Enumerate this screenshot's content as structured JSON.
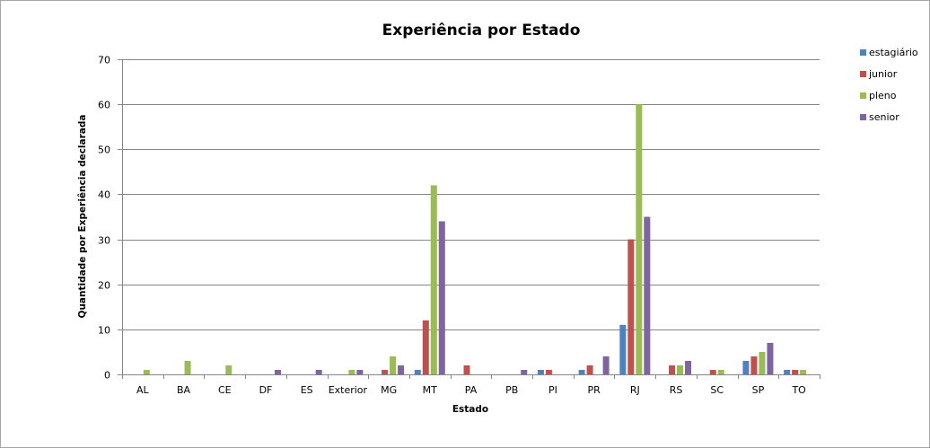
{
  "chart_data": {
    "type": "bar",
    "title": "Experiência por Estado",
    "xlabel": "Estado",
    "ylabel": "Quantidade por Experiência declarada",
    "ylim": [
      0,
      70
    ],
    "yticks": [
      "0",
      "10",
      "20",
      "30",
      "40",
      "50",
      "60",
      "70"
    ],
    "grid": true,
    "legend_position": "right",
    "categories": [
      "AL",
      "BA",
      "CE",
      "DF",
      "ES",
      "Exterior",
      "MG",
      "MT",
      "PA",
      "PB",
      "PI",
      "PR",
      "RJ",
      "RS",
      "SC",
      "SP",
      "TO"
    ],
    "series": [
      {
        "name": "estagiário",
        "color": "#4f81bd",
        "values": [
          0,
          0,
          0,
          0,
          0,
          0,
          0,
          1,
          0,
          0,
          1,
          1,
          11,
          0,
          0,
          3,
          1
        ]
      },
      {
        "name": "junior",
        "color": "#c0504d",
        "values": [
          0,
          0,
          0,
          0,
          0,
          0,
          1,
          12,
          2,
          0,
          1,
          2,
          30,
          2,
          1,
          4,
          1
        ]
      },
      {
        "name": "pleno",
        "color": "#9bbb59",
        "values": [
          1,
          3,
          2,
          0,
          0,
          1,
          4,
          42,
          0,
          0,
          0,
          0,
          60,
          2,
          1,
          5,
          1
        ]
      },
      {
        "name": "senior",
        "color": "#8064a2",
        "values": [
          0,
          0,
          0,
          1,
          1,
          1,
          2,
          34,
          0,
          1,
          0,
          4,
          35,
          3,
          0,
          7,
          0
        ]
      }
    ]
  }
}
